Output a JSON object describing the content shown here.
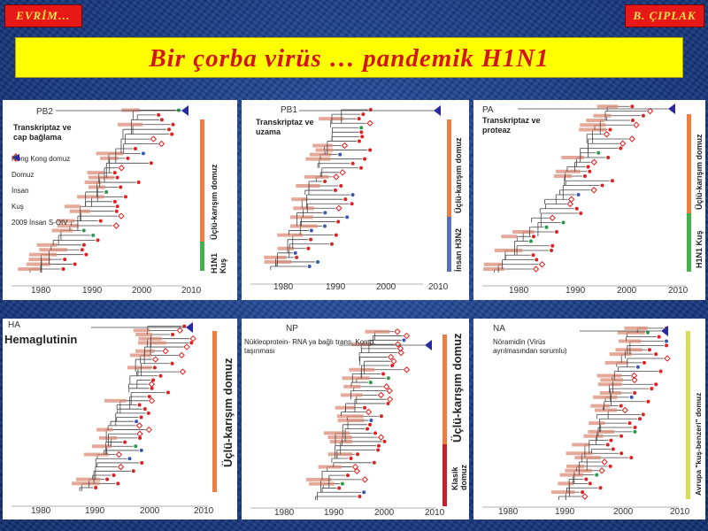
{
  "header": {
    "left_tag": "EVRİM…",
    "right_tag": "B. ÇIPLAK",
    "title": "Bir çorba virüs … pandemik H1N1"
  },
  "colors": {
    "tag_bg": "#e81818",
    "tag_text": "#ffe64a",
    "banner_bg": "#ffff00",
    "banner_text": "#d4141c",
    "triple_reassortant": "#ee7d42",
    "avian": "#44b04a",
    "human_h3n2": "#5a6fb5",
    "classical": "#c8202a",
    "eurasian": "#d8dc5a",
    "swine_dot": "#e02020",
    "human_dot": "#3a58b0",
    "bird_dot": "#2a9a4a"
  },
  "panels": [
    {
      "id": "pb2",
      "gene": "PB2",
      "title": "Transkriptaz ve cap bağlama",
      "axis": [
        "1980",
        "1990",
        "2000",
        "2010"
      ],
      "bars": [
        {
          "label": "Üçlü-karışım domuz",
          "color": "#ee7d42"
        },
        {
          "label": "H1N1 Kuş",
          "color": "#44b04a"
        }
      ],
      "legend": [
        {
          "icon": "open-diamond-icon",
          "label": "Hong Kong  domuz"
        },
        {
          "icon": "red-dot-icon",
          "label": "Domuz"
        },
        {
          "icon": "blue-dot-icon",
          "label": "İnsan"
        },
        {
          "icon": "green-dot-icon",
          "label": "Kuş"
        },
        {
          "icon": "blue-triangle-icon",
          "label": "2009 İnsan S-OIV"
        }
      ]
    },
    {
      "id": "pb1",
      "gene": "PB1",
      "title": "Transkriptaz ve uzama",
      "axis": [
        "1980",
        "1990",
        "2000",
        "2010"
      ],
      "bars": [
        {
          "label": "Üçlü-karışım domuz",
          "color": "#ee7d42"
        },
        {
          "label": "İnsan H3N2",
          "color": "#5a6fb5"
        }
      ]
    },
    {
      "id": "pa",
      "gene": "PA",
      "title": "Transkriptaz ve proteaz",
      "axis": [
        "1980",
        "1990",
        "2000",
        "2010"
      ],
      "bars": [
        {
          "label": "Üçlü-karışım domuz",
          "color": "#ee7d42"
        },
        {
          "label": "H1N1 Kuş",
          "color": "#44b04a"
        }
      ]
    },
    {
      "id": "ha",
      "gene": "HA",
      "title": "Hemaglutinin",
      "axis": [
        "1980",
        "1990",
        "2000",
        "2010"
      ],
      "bars": [
        {
          "label": "Üçlü-karışım domuz",
          "color": "#ee7d42"
        }
      ]
    },
    {
      "id": "np",
      "gene": "NP",
      "title": "Nükleoprotein- RNA ya bağlı trans. Komp. taşınması",
      "axis": [
        "1980",
        "1990",
        "2000",
        "2010"
      ],
      "bars": [
        {
          "label": "Üçlü-karışım domuz",
          "color": "#ee7d42"
        },
        {
          "label": "Klasik domuz",
          "color": "#c8202a"
        }
      ]
    },
    {
      "id": "na",
      "gene": "NA",
      "title": "Nöramidin (Virüs ayrılmasından sorumlu)",
      "axis": [
        "1980",
        "1990",
        "2000",
        "2010"
      ],
      "bars": [
        {
          "label": "Avrupa \"kuş-benzeri\" domuz",
          "color": "#d8dc5a"
        }
      ]
    }
  ]
}
